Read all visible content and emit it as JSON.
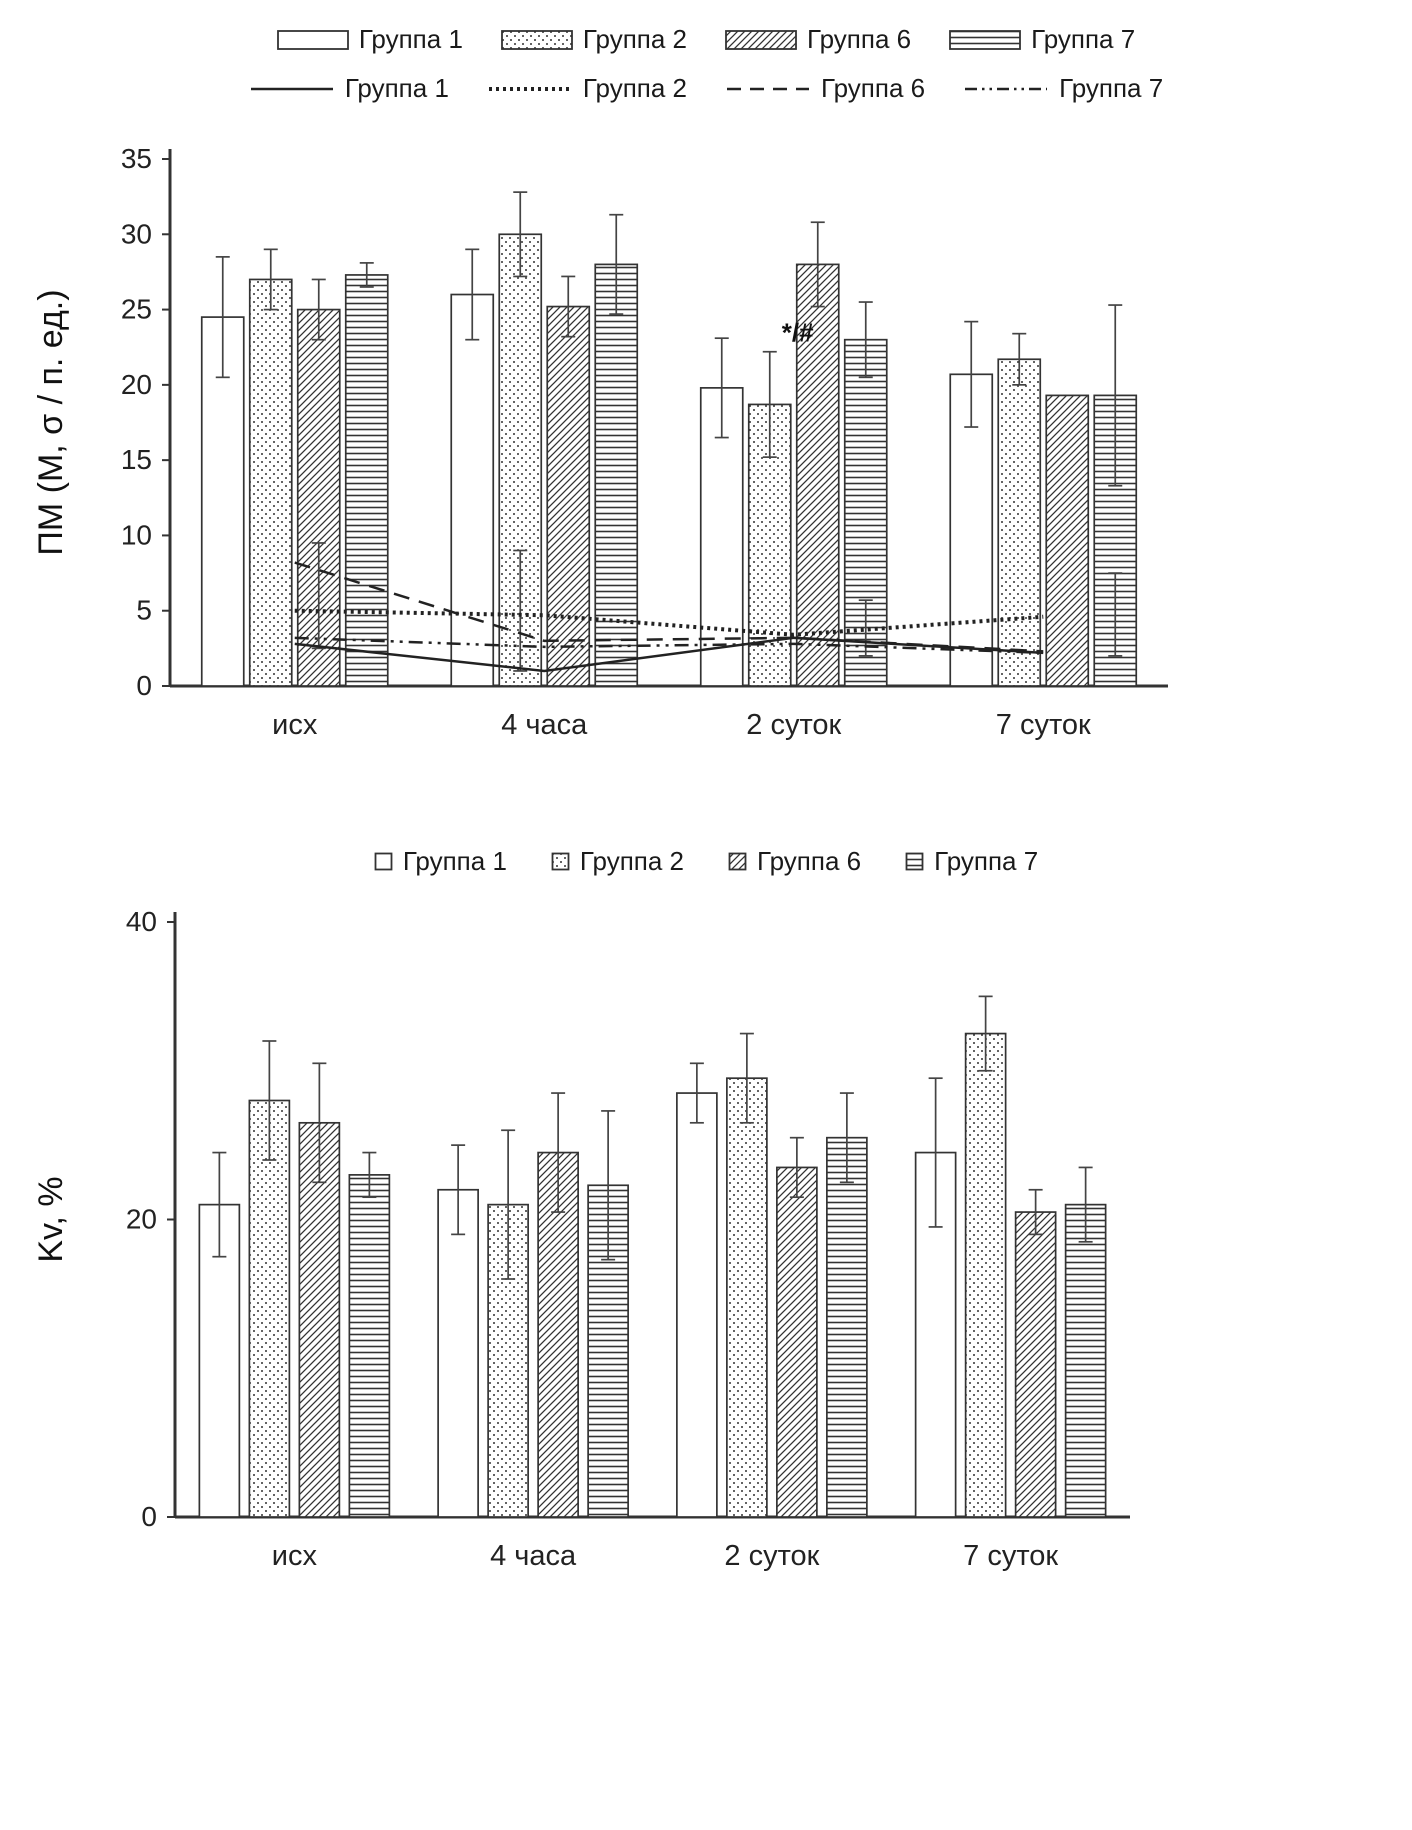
{
  "page": {
    "background": "#ffffff",
    "ink": "#222222",
    "axis_color": "#333333"
  },
  "chart_data": [
    {
      "type": "bar",
      "title": "",
      "ylabel": "ПМ (М, σ / п. ед.)",
      "xlabel": "",
      "categories": [
        "исх",
        "4 часа",
        "2 суток",
        "7 суток"
      ],
      "ylim": [
        0,
        35
      ],
      "yticks": [
        0,
        5,
        10,
        15,
        20,
        25,
        30,
        35
      ],
      "grid": false,
      "legend_position": "top",
      "series": [
        {
          "name": "Группа 1",
          "pattern": "plain",
          "values": [
            24.5,
            26.0,
            19.8,
            20.7
          ],
          "errors": [
            4.0,
            3.0,
            3.3,
            3.5
          ]
        },
        {
          "name": "Группа 2",
          "pattern": "dots",
          "values": [
            27.0,
            30.0,
            18.7,
            21.7
          ],
          "errors": [
            2.0,
            2.8,
            3.5,
            1.7
          ]
        },
        {
          "name": "Группа 6",
          "pattern": "diag",
          "values": [
            25.0,
            25.2,
            28.0,
            19.3
          ],
          "errors": [
            2.0,
            2.0,
            2.8,
            0
          ]
        },
        {
          "name": "Группа 7",
          "pattern": "hlines",
          "values": [
            27.3,
            28.0,
            23.0,
            19.3
          ],
          "errors": [
            0.8,
            3.3,
            2.5,
            6.0
          ]
        }
      ],
      "lines": [
        {
          "name": "Группа 1",
          "dash": "solid",
          "values": [
            2.8,
            1.0,
            3.2,
            2.2
          ]
        },
        {
          "name": "Группа 2",
          "dash": "dotted",
          "values": [
            5.0,
            4.7,
            3.4,
            4.6
          ]
        },
        {
          "name": "Группа 6",
          "dash": "dashed",
          "values": [
            8.2,
            3.0,
            3.2,
            2.3
          ]
        },
        {
          "name": "Группа 7",
          "dash": "dashdotdot",
          "values": [
            3.2,
            2.6,
            2.8,
            2.2
          ]
        }
      ],
      "stray_error_bars": [
        {
          "cat": 0,
          "bar": 2,
          "lo": 2.5,
          "hi": 9.5
        },
        {
          "cat": 1,
          "bar": 1,
          "lo": 1.0,
          "hi": 9.0
        },
        {
          "cat": 2,
          "bar": 3,
          "lo": 2.0,
          "hi": 5.7
        },
        {
          "cat": 3,
          "bar": 3,
          "lo": 2.0,
          "hi": 7.5
        }
      ],
      "annotations": [
        {
          "text": "*/#",
          "cat": 2,
          "bar": 1,
          "y": 22.6,
          "dx": 12,
          "dy": -4
        }
      ]
    },
    {
      "type": "bar",
      "title": "",
      "ylabel": "Kv, %",
      "xlabel": "",
      "categories": [
        "исх",
        "4 часа",
        "2 суток",
        "7 суток"
      ],
      "ylim": [
        0,
        40
      ],
      "yticks": [
        0,
        20,
        40
      ],
      "grid": false,
      "legend_position": "top",
      "series": [
        {
          "name": "Группа 1",
          "pattern": "plain",
          "values": [
            21.0,
            22.0,
            28.5,
            24.5
          ],
          "errors": [
            3.5,
            3.0,
            2.0,
            5.0
          ]
        },
        {
          "name": "Группа 2",
          "pattern": "dots",
          "values": [
            28.0,
            21.0,
            29.5,
            32.5
          ],
          "errors": [
            4.0,
            5.0,
            3.0,
            2.5
          ]
        },
        {
          "name": "Группа 6",
          "pattern": "diag",
          "values": [
            26.5,
            24.5,
            23.5,
            20.5
          ],
          "errors": [
            4.0,
            4.0,
            2.0,
            1.5
          ]
        },
        {
          "name": "Группа 7",
          "pattern": "hlines",
          "values": [
            23.0,
            22.3,
            25.5,
            21.0
          ],
          "errors": [
            1.5,
            5.0,
            3.0,
            2.5
          ]
        }
      ]
    }
  ]
}
